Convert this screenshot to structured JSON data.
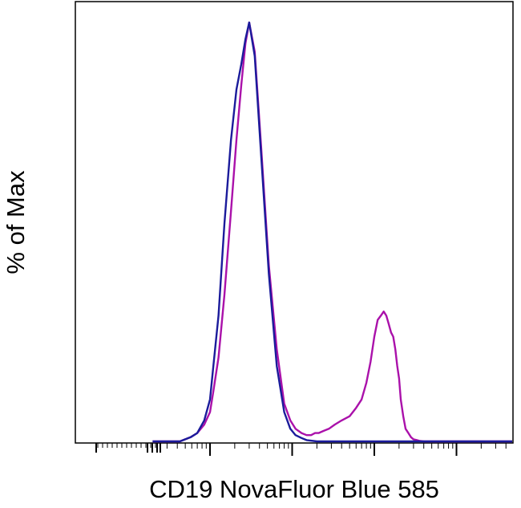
{
  "chart_data": {
    "type": "line",
    "xlabel": "CD19 NovaFluor Blue 585",
    "ylabel": "% of Max",
    "ylim": [
      0,
      100
    ],
    "xscale": "log",
    "grid": false,
    "legend": "none",
    "x_major_ticks": [
      1,
      10,
      100,
      1000,
      10000
    ],
    "series": [
      {
        "color": "#aa11aa",
        "x": [
          0.2,
          0.43,
          0.5,
          0.58,
          0.7,
          0.85,
          1.0,
          1.1,
          1.27,
          1.5,
          1.8,
          2.1,
          2.4,
          2.7,
          3.0,
          3.5,
          4.2,
          5.2,
          6.5,
          8.0,
          9.5,
          11,
          13,
          15,
          17,
          19,
          21,
          24,
          28,
          33,
          40,
          50,
          60,
          70,
          80,
          90,
          100,
          110,
          120,
          130,
          140,
          150,
          160,
          170,
          180,
          190,
          200,
          210,
          225,
          240,
          260,
          280,
          300,
          330,
          360,
          400,
          450,
          500,
          1000,
          10000,
          90000
        ],
        "y": [
          0,
          0,
          0.5,
          1,
          2,
          4,
          7,
          12,
          20,
          35,
          55,
          72,
          85,
          95,
          100,
          93,
          70,
          42,
          22,
          9,
          5,
          3,
          2,
          1.5,
          1.5,
          2,
          2,
          2.5,
          3,
          4,
          5,
          6,
          8,
          10,
          14,
          19,
          25,
          29,
          30,
          31,
          30,
          28,
          26,
          25,
          22,
          18,
          15,
          10,
          6,
          3,
          2,
          1,
          0.5,
          0.3,
          0.1,
          0,
          0,
          0,
          0,
          0,
          0
        ]
      },
      {
        "color": "#1b1b9b",
        "x": [
          0.2,
          0.43,
          0.5,
          0.58,
          0.7,
          0.85,
          1.0,
          1.1,
          1.27,
          1.5,
          1.8,
          2.1,
          2.4,
          2.7,
          3.0,
          3.5,
          4.2,
          5.2,
          6.5,
          8.0,
          9.5,
          11,
          13,
          15,
          20,
          100,
          1000,
          10000,
          90000
        ],
        "y": [
          0,
          0,
          0.5,
          1,
          2,
          5,
          10,
          18,
          30,
          52,
          72,
          84,
          90,
          96,
          100,
          92,
          68,
          40,
          18,
          7,
          3,
          1.5,
          0.8,
          0.3,
          0,
          0,
          0,
          0,
          0
        ]
      }
    ]
  }
}
